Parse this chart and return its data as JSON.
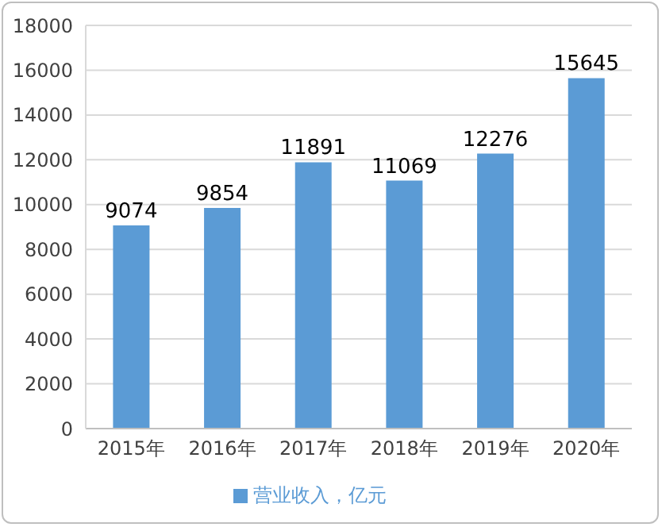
{
  "chart_data": {
    "type": "bar",
    "categories": [
      "2015年",
      "2016年",
      "2017年",
      "2018年",
      "2019年",
      "2020年"
    ],
    "series": [
      {
        "name": "营业收入，亿元",
        "color": "#5b9bd5",
        "values": [
          9074,
          9854,
          11891,
          11069,
          12276,
          15645
        ]
      }
    ],
    "ylim": [
      0,
      18000
    ],
    "yticks": [
      0,
      2000,
      4000,
      6000,
      8000,
      10000,
      12000,
      14000,
      16000,
      18000
    ],
    "grid": "y",
    "legend": "bottom",
    "data_labels": true
  }
}
